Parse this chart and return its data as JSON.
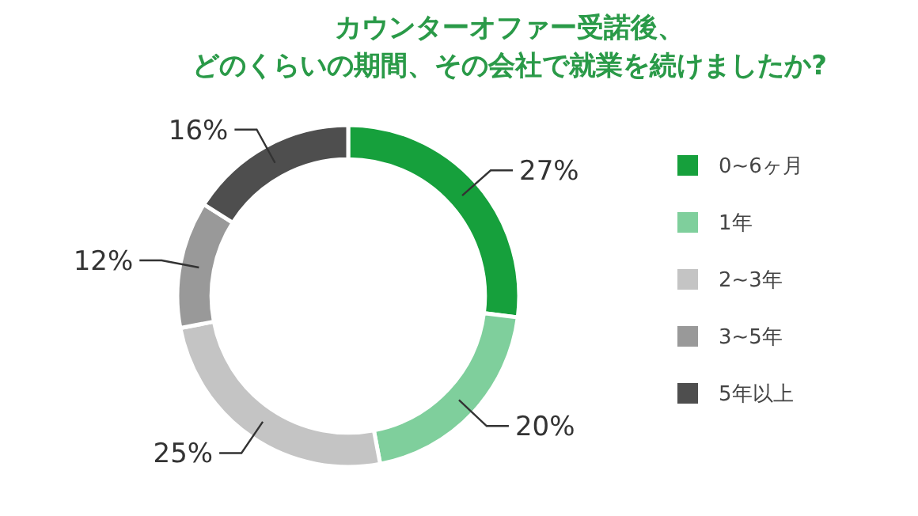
{
  "chart_data": {
    "type": "donut",
    "title": "カウンターオファー受諾後、どのくらいの期間、その会社で就業を続けましたか?",
    "categories": [
      "0~6ヶ月",
      "1年",
      "2~3年",
      "3~5年",
      "5年以上"
    ],
    "values": [
      27,
      20,
      25,
      12,
      16
    ],
    "value_labels": [
      "27%",
      "20%",
      "25%",
      "12%",
      "16%"
    ],
    "colors": [
      "#16a03c",
      "#7fcf9c",
      "#c4c4c4",
      "#999999",
      "#4e4e4e"
    ],
    "legend": "right"
  }
}
